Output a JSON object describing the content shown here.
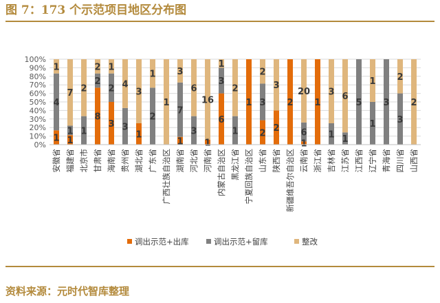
{
  "figure": {
    "title": "图 7：173 个示范项目地区分布图",
    "source": "资料来源：元时代智库整理"
  },
  "colors": {
    "series1": "#e36c0a",
    "series2": "#808080",
    "series3": "#dfb67d",
    "accent": "#b38a3c"
  },
  "chart_data": {
    "type": "bar",
    "stacked": "percent",
    "title": "",
    "xlabel": "",
    "ylabel": "",
    "ylim": [
      0,
      100
    ],
    "y_ticks": [
      "0%",
      "10%",
      "20%",
      "30%",
      "40%",
      "50%",
      "60%",
      "70%",
      "80%",
      "90%",
      "100%"
    ],
    "legend_position": "bottom",
    "categories": [
      "安徽省",
      "福建省",
      "北京市",
      "甘肃省",
      "海南省",
      "贵州省",
      "湖北省",
      "广东省",
      "广西壮族自治区",
      "湖南省",
      "河北省",
      "河南省",
      "内蒙古自治区",
      "黑龙江省",
      "宁夏回族自治区",
      "山东省",
      "陕西省",
      "新疆维吾尔自治区",
      "云南省",
      "浙江省",
      "吉林省",
      "江苏省",
      "江西省",
      "辽宁省",
      "青海省",
      "四川省",
      "山西省"
    ],
    "series": [
      {
        "name": "调出示范+出库",
        "values": [
          1,
          1,
          0,
          8,
          3,
          0,
          1,
          0,
          0,
          1,
          0,
          1,
          6,
          0,
          1,
          2,
          2,
          2,
          1,
          1,
          0,
          0,
          0,
          0,
          0,
          0,
          0
        ]
      },
      {
        "name": "调出示范+留库",
        "values": [
          4,
          1,
          1,
          2,
          2,
          3,
          0,
          2,
          0,
          7,
          3,
          0,
          3,
          1,
          0,
          3,
          0,
          0,
          6,
          0,
          1,
          1,
          5,
          1,
          3,
          3,
          0
        ]
      },
      {
        "name": "整改",
        "values": [
          1,
          7,
          2,
          2,
          1,
          4,
          3,
          1,
          1,
          3,
          6,
          16,
          1,
          2,
          0,
          2,
          3,
          0,
          20,
          0,
          3,
          6,
          0,
          1,
          0,
          2,
          2
        ]
      }
    ]
  }
}
